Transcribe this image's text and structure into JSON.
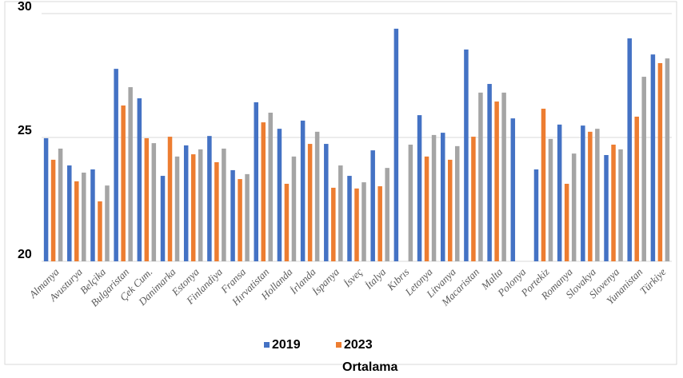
{
  "chart_data": {
    "type": "bar",
    "categories": [
      "Almanya",
      "Avusturya",
      "Belçika",
      "Bulgaristan",
      "Çek Cum.",
      "Danimarka",
      "Estonya",
      "Finlandiya",
      "Fransa",
      "Hırvatistan",
      "Hollanda",
      "İrlanda",
      "İspanya",
      "İsveç",
      "İtalya",
      "Kıbrıs",
      "Letonya",
      "Litvanya",
      "Macaristan",
      "Malta",
      "Polonya",
      "Portekiz",
      "Romanya",
      "Slovakya",
      "Slovenya",
      "Yunanistan",
      "Türkiye"
    ],
    "series": [
      {
        "name": "2019",
        "color": "#4472c4",
        "values": [
          24.97,
          23.87,
          23.71,
          27.77,
          26.58,
          23.45,
          24.68,
          25.06,
          23.68,
          26.42,
          25.35,
          25.68,
          24.74,
          23.45,
          24.48,
          29.39,
          25.9,
          25.19,
          28.55,
          27.16,
          25.77,
          23.71,
          25.52,
          25.48,
          24.29,
          29.0,
          28.35
        ]
      },
      {
        "name": "2023",
        "color": "#ed7d31",
        "values": [
          24.1,
          23.23,
          22.42,
          26.29,
          24.97,
          25.03,
          24.32,
          24.0,
          23.32,
          25.61,
          23.13,
          24.74,
          22.97,
          22.94,
          23.03,
          null,
          24.23,
          24.1,
          25.03,
          26.45,
          null,
          26.16,
          23.13,
          25.23,
          24.71,
          25.84,
          28.0
        ]
      },
      {
        "name": "Ortalama",
        "color": "#a5a5a5",
        "values": [
          24.55,
          23.58,
          23.06,
          27.03,
          24.77,
          24.23,
          24.52,
          24.55,
          23.52,
          26.0,
          24.23,
          25.23,
          23.87,
          23.19,
          23.77,
          24.71,
          25.1,
          24.65,
          26.81,
          26.81,
          null,
          24.94,
          24.35,
          25.35,
          24.52,
          27.45,
          28.19
        ]
      }
    ],
    "ylim": [
      20,
      30
    ],
    "yticks": [
      20,
      25,
      30
    ],
    "grid": true
  }
}
